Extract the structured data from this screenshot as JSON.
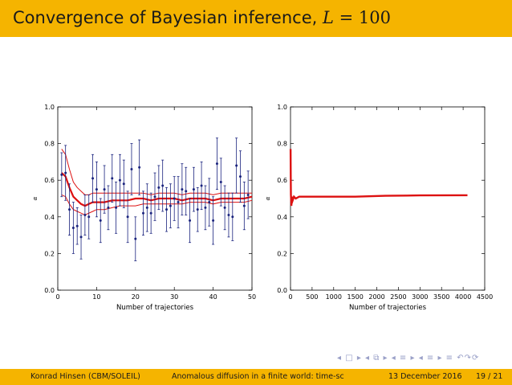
{
  "slide": {
    "title_prefix": "Convergence of Bayesian inference, ",
    "title_var": "L",
    "title_eq": " = 100"
  },
  "footer": {
    "author": "Konrad Hinsen  (CBM/SOLEIL)",
    "talk": "Anomalous diffusion in a finite world: time-sc",
    "date": "13 December 2016",
    "page": "19 / 21"
  },
  "nav": {
    "symbols": "◂ □ ▸  ◂ ⧉ ▸  ◂ ≡ ▸  ◂ ≡ ▸   ≡   ↶↷⟳"
  },
  "colors": {
    "bar": "#f5b400",
    "points": "#1a237e",
    "estimate": "#dd1111",
    "nav": "#9aa0c8"
  },
  "chart_data": [
    {
      "type": "scatter",
      "xlabel": "Number of trajectories",
      "ylabel": "α",
      "xlim": [
        0,
        50
      ],
      "ylim": [
        0.0,
        1.0
      ],
      "xticks": [
        "0",
        "10",
        "20",
        "30",
        "40",
        "50"
      ],
      "yticks": [
        "0.0",
        "0.2",
        "0.4",
        "0.6",
        "0.8",
        "1.0"
      ],
      "points": {
        "x": [
          1,
          2,
          3,
          4,
          5,
          6,
          7,
          8,
          9,
          10,
          11,
          12,
          13,
          14,
          15,
          16,
          17,
          18,
          19,
          20,
          21,
          22,
          23,
          24,
          25,
          26,
          27,
          28,
          29,
          30,
          31,
          32,
          33,
          34,
          35,
          36,
          37,
          38,
          39,
          40,
          41,
          42,
          43,
          44,
          45,
          46,
          47,
          48,
          49
        ],
        "y": [
          0.63,
          0.64,
          0.44,
          0.34,
          0.35,
          0.29,
          0.41,
          0.4,
          0.61,
          0.55,
          0.38,
          0.55,
          0.45,
          0.61,
          0.45,
          0.6,
          0.58,
          0.4,
          0.66,
          0.28,
          0.67,
          0.42,
          0.45,
          0.42,
          0.51,
          0.56,
          0.57,
          0.44,
          0.46,
          0.5,
          0.48,
          0.55,
          0.54,
          0.38,
          0.55,
          0.44,
          0.57,
          0.45,
          0.48,
          0.38,
          0.69,
          0.59,
          0.45,
          0.41,
          0.4,
          0.68,
          0.62,
          0.46,
          0.52
        ],
        "err": [
          0.12,
          0.15,
          0.14,
          0.14,
          0.1,
          0.12,
          0.11,
          0.12,
          0.13,
          0.15,
          0.12,
          0.13,
          0.12,
          0.13,
          0.14,
          0.14,
          0.13,
          0.14,
          0.14,
          0.12,
          0.15,
          0.12,
          0.13,
          0.11,
          0.13,
          0.12,
          0.14,
          0.12,
          0.12,
          0.12,
          0.14,
          0.14,
          0.13,
          0.12,
          0.12,
          0.12,
          0.13,
          0.12,
          0.13,
          0.13,
          0.14,
          0.13,
          0.12,
          0.12,
          0.13,
          0.15,
          0.14,
          0.13,
          0.13
        ]
      },
      "estimate": {
        "x": [
          1,
          2,
          3,
          4,
          5,
          6,
          7,
          8,
          9,
          10,
          12,
          14,
          16,
          18,
          20,
          22,
          24,
          26,
          28,
          30,
          32,
          34,
          36,
          38,
          40,
          42,
          44,
          46,
          48,
          50
        ],
        "mean": [
          0.64,
          0.62,
          0.56,
          0.51,
          0.49,
          0.47,
          0.46,
          0.47,
          0.48,
          0.48,
          0.48,
          0.49,
          0.49,
          0.49,
          0.5,
          0.5,
          0.49,
          0.5,
          0.5,
          0.5,
          0.49,
          0.5,
          0.5,
          0.5,
          0.49,
          0.5,
          0.5,
          0.5,
          0.5,
          0.51
        ],
        "upper": [
          0.77,
          0.74,
          0.66,
          0.59,
          0.56,
          0.54,
          0.52,
          0.52,
          0.53,
          0.53,
          0.53,
          0.53,
          0.53,
          0.53,
          0.53,
          0.53,
          0.52,
          0.53,
          0.53,
          0.53,
          0.52,
          0.53,
          0.53,
          0.53,
          0.52,
          0.53,
          0.53,
          0.53,
          0.53,
          0.53
        ],
        "lower": [
          0.52,
          0.51,
          0.47,
          0.44,
          0.43,
          0.42,
          0.41,
          0.42,
          0.43,
          0.44,
          0.44,
          0.45,
          0.46,
          0.46,
          0.46,
          0.47,
          0.47,
          0.47,
          0.47,
          0.47,
          0.47,
          0.48,
          0.48,
          0.48,
          0.47,
          0.48,
          0.48,
          0.48,
          0.48,
          0.49
        ]
      }
    },
    {
      "type": "line",
      "xlabel": "Number of trajectories",
      "ylabel": "α",
      "xlim": [
        0,
        4500
      ],
      "ylim": [
        0.0,
        1.0
      ],
      "xticks": [
        "0",
        "500",
        "1000",
        "1500",
        "2000",
        "2500",
        "3000",
        "3500",
        "4000",
        "4500"
      ],
      "yticks": [
        "0.0",
        "0.2",
        "0.4",
        "0.6",
        "0.8",
        "1.0"
      ],
      "estimate": {
        "x": [
          1,
          5,
          10,
          20,
          30,
          50,
          80,
          120,
          200,
          400,
          800,
          1500,
          2200,
          3000,
          4000,
          4100
        ],
        "mean": [
          0.77,
          0.62,
          0.52,
          0.46,
          0.51,
          0.49,
          0.51,
          0.5,
          0.51,
          0.51,
          0.51,
          0.51,
          0.515,
          0.517,
          0.518,
          0.518
        ]
      }
    }
  ]
}
